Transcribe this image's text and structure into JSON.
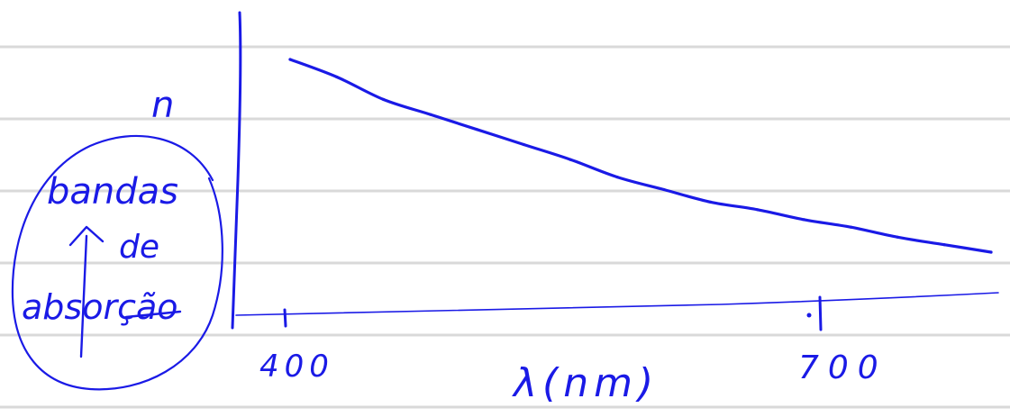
{
  "colors": {
    "ink": "#1a1ae6",
    "paper": "#ffffff",
    "ruled_line": "#d9d9d9"
  },
  "chart_data": {
    "type": "line",
    "title": "",
    "xlabel": "λ(nm)",
    "ylabel": "n",
    "x_ticks": [
      "400",
      "700"
    ],
    "xlim": [
      400,
      700
    ],
    "series": [
      {
        "x": [
          400,
          420,
          440,
          460,
          480,
          500,
          520,
          540,
          560,
          580,
          600,
          620,
          640,
          660,
          680,
          700
        ],
        "y": [
          1.0,
          0.93,
          0.84,
          0.78,
          0.72,
          0.66,
          0.6,
          0.53,
          0.48,
          0.43,
          0.4,
          0.36,
          0.33,
          0.29,
          0.26,
          0.23
        ]
      }
    ],
    "annotation": {
      "lines": [
        "bandas",
        "de",
        "absorção"
      ]
    },
    "grid": "horizontal ruled paper lines",
    "legend": "none"
  }
}
